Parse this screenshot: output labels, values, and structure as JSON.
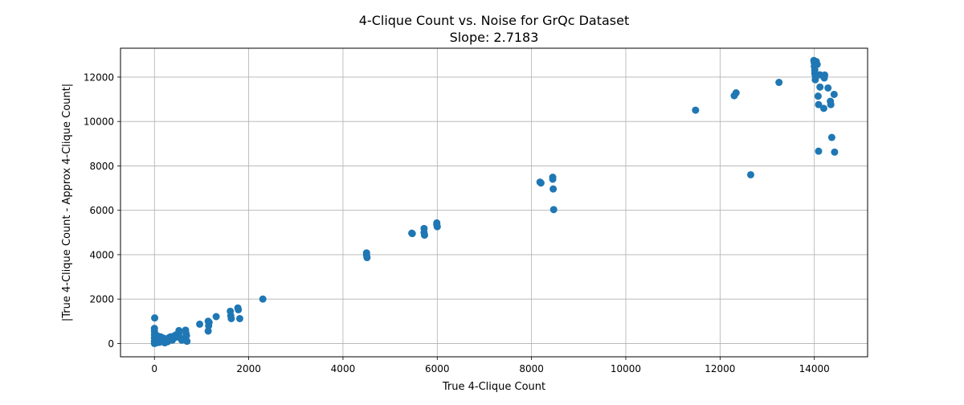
{
  "chart_data": {
    "type": "scatter",
    "title": "4-Clique Count vs. Noise for GrQc Dataset",
    "subtitle": "Slope: 2.7183",
    "xlabel": "True 4-Clique Count",
    "ylabel": "|True 4-Clique Count - Approx 4-Clique Count|",
    "xlim": [
      -720,
      15130
    ],
    "ylim": [
      -600,
      13300
    ],
    "xticks": [
      0,
      2000,
      4000,
      6000,
      8000,
      10000,
      12000,
      14000
    ],
    "xtick_labels": [
      "0",
      "2000",
      "4000",
      "6000",
      "8000",
      "10000",
      "12000",
      "14000"
    ],
    "yticks": [
      0,
      2000,
      4000,
      6000,
      8000,
      10000,
      12000
    ],
    "ytick_labels": [
      "0",
      "2000",
      "4000",
      "6000",
      "8000",
      "10000",
      "12000"
    ],
    "grid": true,
    "legend": "none",
    "marker_color": "#1f77b4",
    "points": [
      [
        0,
        0
      ],
      [
        0,
        100
      ],
      [
        0,
        250
      ],
      [
        0,
        400
      ],
      [
        0,
        550
      ],
      [
        0,
        680
      ],
      [
        5,
        1150
      ],
      [
        10,
        50
      ],
      [
        20,
        150
      ],
      [
        20,
        300
      ],
      [
        30,
        20
      ],
      [
        40,
        200
      ],
      [
        50,
        100
      ],
      [
        60,
        350
      ],
      [
        70,
        60
      ],
      [
        80,
        250
      ],
      [
        90,
        150
      ],
      [
        100,
        50
      ],
      [
        110,
        200
      ],
      [
        120,
        100
      ],
      [
        130,
        300
      ],
      [
        150,
        180
      ],
      [
        160,
        80
      ],
      [
        180,
        250
      ],
      [
        200,
        120
      ],
      [
        220,
        30
      ],
      [
        240,
        200
      ],
      [
        260,
        150
      ],
      [
        280,
        80
      ],
      [
        300,
        250
      ],
      [
        320,
        180
      ],
      [
        340,
        300
      ],
      [
        360,
        220
      ],
      [
        380,
        150
      ],
      [
        400,
        320
      ],
      [
        420,
        250
      ],
      [
        450,
        380
      ],
      [
        480,
        300
      ],
      [
        520,
        580
      ],
      [
        520,
        480
      ],
      [
        550,
        250
      ],
      [
        580,
        150
      ],
      [
        660,
        600
      ],
      [
        670,
        450
      ],
      [
        680,
        350
      ],
      [
        690,
        100
      ],
      [
        960,
        870
      ],
      [
        1140,
        1000
      ],
      [
        1140,
        560
      ],
      [
        1150,
        800
      ],
      [
        1160,
        950
      ],
      [
        1310,
        1210
      ],
      [
        1610,
        1450
      ],
      [
        1620,
        1250
      ],
      [
        1630,
        1120
      ],
      [
        1770,
        1600
      ],
      [
        1780,
        1520
      ],
      [
        1810,
        1120
      ],
      [
        2300,
        2000
      ],
      [
        4500,
        4080
      ],
      [
        4500,
        3990
      ],
      [
        4510,
        3870
      ],
      [
        5460,
        4970
      ],
      [
        5470,
        4950
      ],
      [
        5720,
        5180
      ],
      [
        5720,
        5000
      ],
      [
        5730,
        4880
      ],
      [
        5990,
        5430
      ],
      [
        5990,
        5360
      ],
      [
        6000,
        5260
      ],
      [
        8180,
        7270
      ],
      [
        8200,
        7230
      ],
      [
        8450,
        7490
      ],
      [
        8450,
        7400
      ],
      [
        8460,
        6960
      ],
      [
        8470,
        6030
      ],
      [
        11480,
        10510
      ],
      [
        12300,
        11160
      ],
      [
        12340,
        11290
      ],
      [
        12650,
        7600
      ],
      [
        13250,
        11760
      ],
      [
        13990,
        12750
      ],
      [
        14000,
        12630
      ],
      [
        14000,
        12480
      ],
      [
        14010,
        12320
      ],
      [
        14010,
        12170
      ],
      [
        14020,
        11880
      ],
      [
        14020,
        12050
      ],
      [
        14040,
        12700
      ],
      [
        14060,
        12570
      ],
      [
        14080,
        11140
      ],
      [
        14090,
        8660
      ],
      [
        14090,
        10760
      ],
      [
        14120,
        12100
      ],
      [
        14120,
        11550
      ],
      [
        14200,
        10590
      ],
      [
        14210,
        11960
      ],
      [
        14220,
        12090
      ],
      [
        14290,
        11510
      ],
      [
        14340,
        10910
      ],
      [
        14350,
        10760
      ],
      [
        14370,
        9280
      ],
      [
        14420,
        11220
      ],
      [
        14430,
        8620
      ]
    ]
  }
}
